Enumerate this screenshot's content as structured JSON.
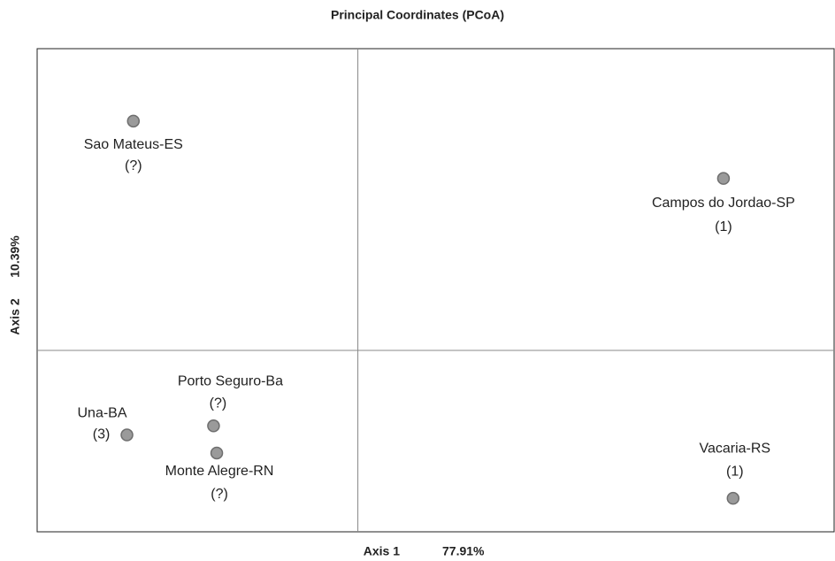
{
  "chart_data": {
    "type": "scatter",
    "title": "Principal Coordinates (PCoA)",
    "x_label": "Axis 1",
    "x_variance": "77.91%",
    "y_label": "Axis 2",
    "y_variance": "10.39%",
    "labels": [
      "Sao Mateus-ES",
      "Campos do Jordao-SP",
      "Una-BA",
      "Porto Seguro-Ba",
      "Monte Alegre-RN",
      "Vacaria-RS"
    ],
    "counts": [
      "(?)",
      "(1)",
      "(3)",
      "(?)",
      "(?)",
      "(1)"
    ],
    "x": [
      -0.7,
      1.14,
      -0.72,
      -0.45,
      -0.44,
      1.17
    ],
    "y": [
      0.76,
      0.57,
      -0.28,
      -0.25,
      -0.34,
      -0.49
    ],
    "xlim": [
      -1,
      1.485
    ],
    "ylim": [
      -0.601,
      1
    ],
    "color": "#9a9a9a"
  }
}
